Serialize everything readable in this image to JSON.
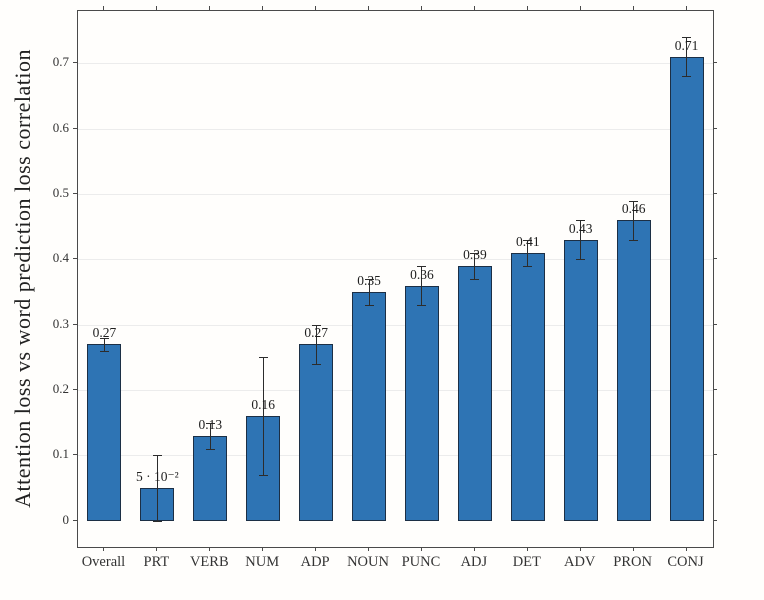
{
  "chart_data": {
    "type": "bar",
    "title": "",
    "xlabel": "",
    "ylabel": "Attention loss vs word prediction loss correlation",
    "categories": [
      "Overall",
      "PRT",
      "VERB",
      "NUM",
      "ADP",
      "NOUN",
      "PUNC",
      "ADJ",
      "DET",
      "ADV",
      "PRON",
      "CONJ"
    ],
    "values": [
      0.27,
      0.05,
      0.13,
      0.16,
      0.27,
      0.35,
      0.36,
      0.39,
      0.41,
      0.43,
      0.46,
      0.71
    ],
    "errors": [
      0.01,
      0.05,
      0.02,
      0.09,
      0.03,
      0.02,
      0.03,
      0.02,
      0.02,
      0.03,
      0.03,
      0.03
    ],
    "bar_labels": [
      "0.27",
      "5 · 10⁻²",
      "0.13",
      "0.16",
      "0.27",
      "0.35",
      "0.36",
      "0.39",
      "0.41",
      "0.43",
      "0.46",
      "0.71"
    ],
    "y_ticks": [
      0,
      0.1,
      0.2,
      0.3,
      0.4,
      0.5,
      0.6,
      0.7
    ],
    "y_tick_labels": [
      "0",
      "0.1",
      "0.2",
      "0.3",
      "0.4",
      "0.5",
      "0.6",
      "0.7"
    ],
    "ylim": [
      -0.04,
      0.78
    ],
    "grid": true,
    "legend": null,
    "colors": {
      "bar_fill": "#2e74b4",
      "bar_edge": "#1c2f45",
      "error": "#2c2c2c",
      "grid": "#ececec",
      "frame": "#4a4a4a",
      "text": "#333333",
      "background": "#fffefc"
    }
  }
}
